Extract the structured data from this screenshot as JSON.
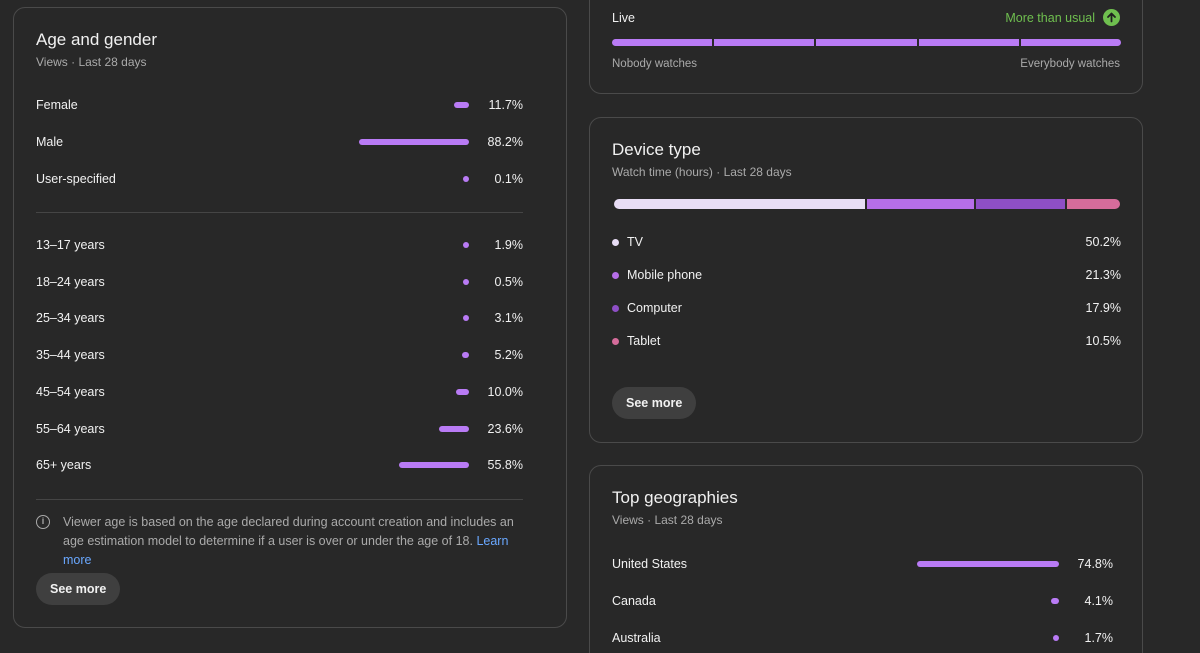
{
  "age_gender": {
    "title": "Age and gender",
    "subtitle": "Views · Last 28 days",
    "gender": [
      {
        "label": "Female",
        "value": "11.7%",
        "pct": 11.7
      },
      {
        "label": "Male",
        "value": "88.2%",
        "pct": 88.2
      },
      {
        "label": "User-specified",
        "value": "0.1%",
        "pct": 0.1
      }
    ],
    "age": [
      {
        "label": "13–17 years",
        "value": "1.9%",
        "pct": 1.9
      },
      {
        "label": "18–24 years",
        "value": "0.5%",
        "pct": 0.5
      },
      {
        "label": "25–34 years",
        "value": "3.1%",
        "pct": 3.1
      },
      {
        "label": "35–44 years",
        "value": "5.2%",
        "pct": 5.2
      },
      {
        "label": "45–54 years",
        "value": "10.0%",
        "pct": 10.0
      },
      {
        "label": "55–64 years",
        "value": "23.6%",
        "pct": 23.6
      },
      {
        "label": "65+ years",
        "value": "55.8%",
        "pct": 55.8
      }
    ],
    "info_text": "Viewer age is based on the age declared during account creation and includes an age estimation model to determine if a user is over or under the age of 18.",
    "info_link": "Learn more",
    "see_more": "See more",
    "bar_color": "#b97bf5"
  },
  "live": {
    "label": "Live",
    "status": "More than usual",
    "status_color": "#6fbf4f",
    "scale_left": "Nobody watches",
    "scale_right": "Everybody watches",
    "segments": 5
  },
  "device": {
    "title": "Device type",
    "subtitle": "Watch time (hours) · Last 28 days",
    "items": [
      {
        "label": "TV",
        "value": "50.2%",
        "pct": 50.2,
        "color": "#e8ddf5"
      },
      {
        "label": "Mobile phone",
        "value": "21.3%",
        "pct": 21.3,
        "color": "#b66ee8"
      },
      {
        "label": "Computer",
        "value": "17.9%",
        "pct": 17.9,
        "color": "#8e4fc6"
      },
      {
        "label": "Tablet",
        "value": "10.5%",
        "pct": 10.5,
        "color": "#d56c9b"
      }
    ],
    "see_more": "See more"
  },
  "geo": {
    "title": "Top geographies",
    "subtitle": "Views · Last 28 days",
    "items": [
      {
        "label": "United States",
        "value": "74.8%",
        "pct": 74.8
      },
      {
        "label": "Canada",
        "value": "4.1%",
        "pct": 4.1
      },
      {
        "label": "Australia",
        "value": "1.7%",
        "pct": 1.7
      }
    ]
  }
}
